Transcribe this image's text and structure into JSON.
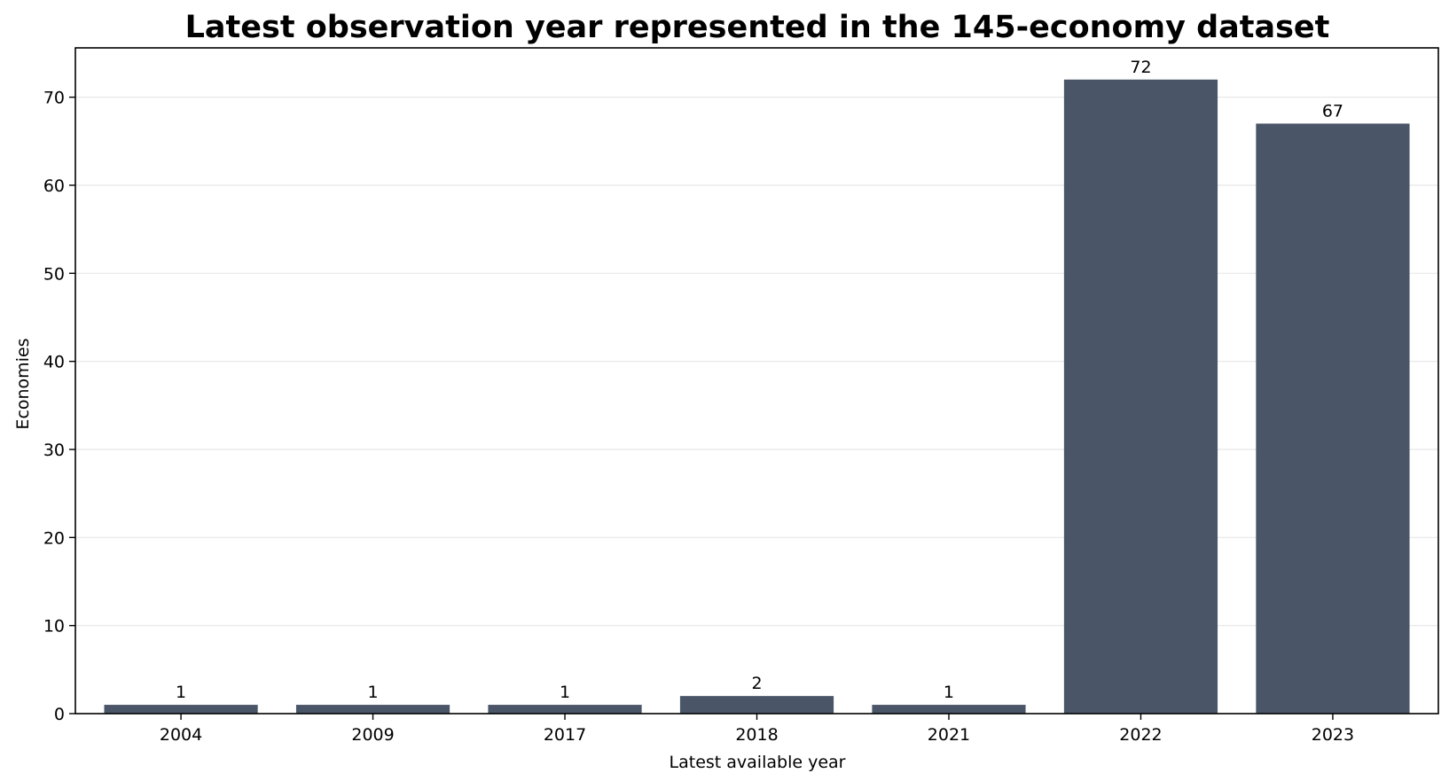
{
  "chart_data": {
    "type": "bar",
    "title": "Latest observation year represented in the 145-economy dataset",
    "xlabel": "Latest available year",
    "ylabel": "Economies",
    "categories": [
      "2004",
      "2009",
      "2017",
      "2018",
      "2021",
      "2022",
      "2023"
    ],
    "values": [
      1,
      1,
      1,
      2,
      1,
      72,
      67
    ],
    "ylim": [
      0,
      75.6
    ],
    "yticks": [
      0,
      10,
      20,
      30,
      40,
      50,
      60,
      70
    ],
    "grid": "horizontal",
    "bar_color": "#4a5568",
    "data_labels": true
  }
}
